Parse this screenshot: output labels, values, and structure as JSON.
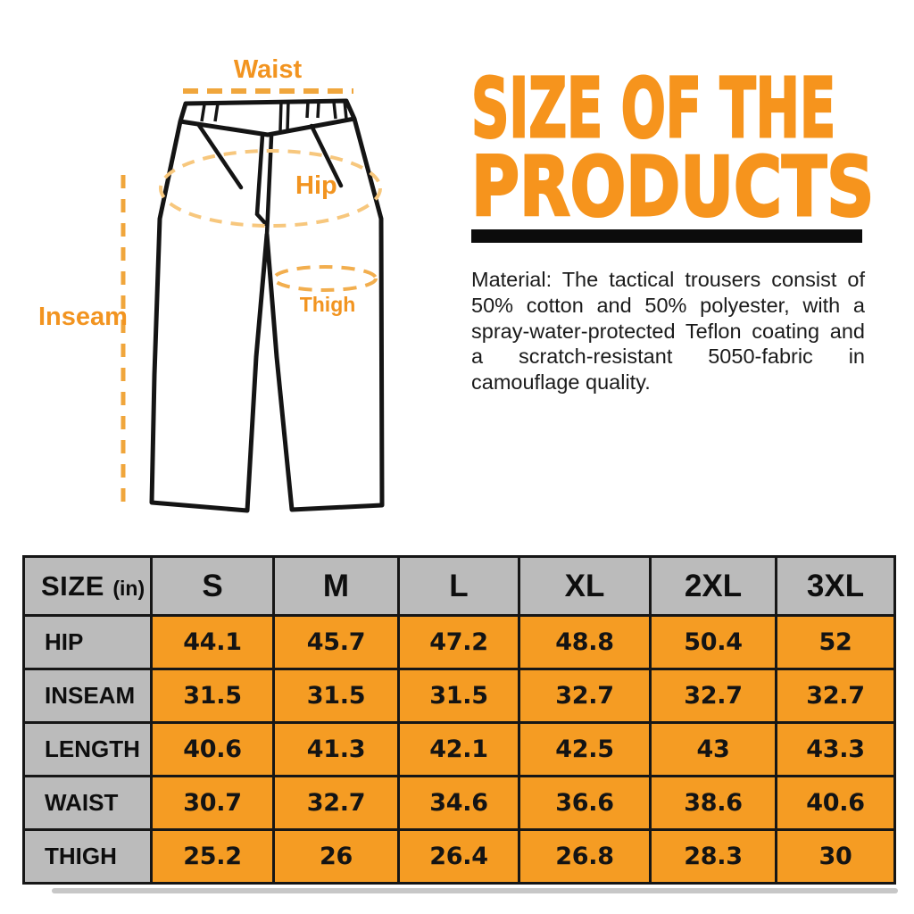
{
  "colors": {
    "accent_orange": "#F6941D",
    "table_cell_orange": "#F59C23",
    "table_cell_gray": "#BBBBBB",
    "table_border": "#161616",
    "dash_strong_orange": "#F0A63C",
    "dash_light_orange": "#F7C77D",
    "dash_medium_orange": "#F2AE4E",
    "text_black": "#1B1B1B"
  },
  "diagram": {
    "waist_label": "Waist",
    "hip_label": "Hip",
    "thigh_label": "Thigh",
    "inseam_label": "Inseam"
  },
  "heading": {
    "title_line1": "SIZE OF THE",
    "title_line2": "PRODUCTS",
    "material_paragraph": "Material: The tactical trousers consist of 50% cotton and 50% polyester, with a spray-water-protected Teflon coating and a scratch-resistant 5050-fabric in camouflage quality."
  },
  "size_table": {
    "corner_label": "SIZE",
    "corner_unit": "(in)",
    "size_columns": [
      "S",
      "M",
      "L",
      "XL",
      "2XL",
      "3XL"
    ],
    "rows": [
      {
        "label": "HIP",
        "values": [
          "44.1",
          "45.7",
          "47.2",
          "48.8",
          "50.4",
          "52"
        ]
      },
      {
        "label": "INSEAM",
        "values": [
          "31.5",
          "31.5",
          "31.5",
          "32.7",
          "32.7",
          "32.7"
        ]
      },
      {
        "label": "LENGTH",
        "values": [
          "40.6",
          "41.3",
          "42.1",
          "42.5",
          "43",
          "43.3"
        ]
      },
      {
        "label": "WAIST",
        "values": [
          "30.7",
          "32.7",
          "34.6",
          "36.6",
          "38.6",
          "40.6"
        ]
      },
      {
        "label": "THIGH",
        "values": [
          "25.2",
          "26",
          "26.4",
          "26.8",
          "28.3",
          "30"
        ]
      }
    ]
  },
  "chart_data": {
    "type": "table",
    "title": "SIZE OF THE PRODUCTS",
    "unit": "inches",
    "columns": [
      "SIZE (in)",
      "S",
      "M",
      "L",
      "XL",
      "2XL",
      "3XL"
    ],
    "rows": [
      [
        "HIP",
        44.1,
        45.7,
        47.2,
        48.8,
        50.4,
        52
      ],
      [
        "INSEAM",
        31.5,
        31.5,
        31.5,
        32.7,
        32.7,
        32.7
      ],
      [
        "LENGTH",
        40.6,
        41.3,
        42.1,
        42.5,
        43,
        43.3
      ],
      [
        "WAIST",
        30.7,
        32.7,
        34.6,
        36.6,
        38.6,
        40.6
      ],
      [
        "THIGH",
        25.2,
        26,
        26.4,
        26.8,
        28.3,
        30
      ]
    ]
  }
}
